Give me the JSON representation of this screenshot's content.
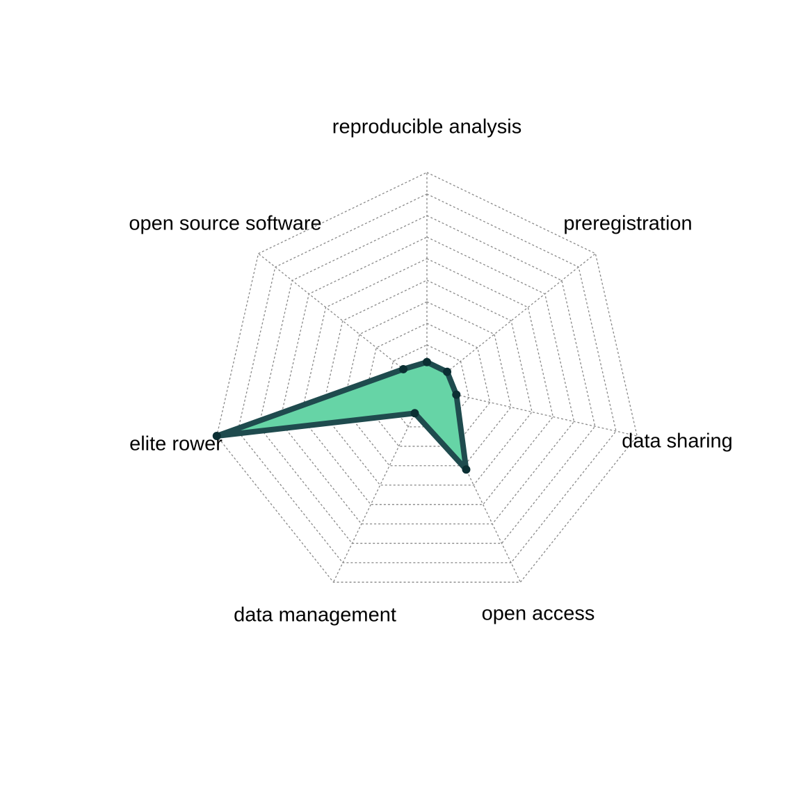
{
  "chart_data": {
    "type": "radar",
    "title": "",
    "axes": [
      "reproducible analysis",
      "preregistration",
      "data sharing",
      "open access",
      "data management",
      "elite rower",
      "open source software"
    ],
    "series": [
      {
        "values": [
          1.2,
          1.2,
          1.4,
          4.2,
          1.3,
          10,
          1.4
        ],
        "fill": "#66d4a6",
        "stroke": "#1f4b4e",
        "marker": "#0b2f33"
      }
    ],
    "rmin": 0,
    "rmax": 10,
    "grid_levels": 10,
    "grid": true,
    "legend": "none"
  }
}
